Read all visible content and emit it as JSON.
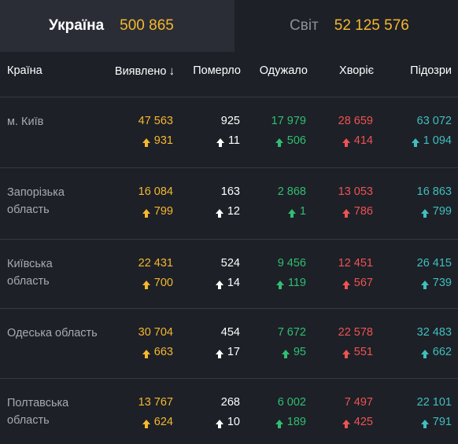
{
  "tabs": {
    "ukraine": {
      "name": "Україна",
      "value": "500 865"
    },
    "world": {
      "name": "Світ",
      "value": "52 125 576"
    }
  },
  "headers": {
    "country": "Країна",
    "detected": "Виявлено",
    "sort_arrow": "↓",
    "died": "Померло",
    "recovered": "Одужало",
    "sick": "Хворіє",
    "suspected": "Підозри"
  },
  "rows": [
    {
      "name": "м. Київ",
      "detected": "47 563",
      "detected_d": "931",
      "died": "925",
      "died_d": "11",
      "recovered": "17 979",
      "recovered_d": "506",
      "sick": "28 659",
      "sick_d": "414",
      "suspected": "63 072",
      "suspected_d": "1 094"
    },
    {
      "name": "Запорізька область",
      "detected": "16 084",
      "detected_d": "799",
      "died": "163",
      "died_d": "12",
      "recovered": "2 868",
      "recovered_d": "1",
      "sick": "13 053",
      "sick_d": "786",
      "suspected": "16 863",
      "suspected_d": "799"
    },
    {
      "name": "Київська область",
      "detected": "22 431",
      "detected_d": "700",
      "died": "524",
      "died_d": "14",
      "recovered": "9 456",
      "recovered_d": "119",
      "sick": "12 451",
      "sick_d": "567",
      "suspected": "26 415",
      "suspected_d": "739"
    },
    {
      "name": "Одеська область",
      "detected": "30 704",
      "detected_d": "663",
      "died": "454",
      "died_d": "17",
      "recovered": "7 672",
      "recovered_d": "95",
      "sick": "22 578",
      "sick_d": "551",
      "suspected": "32 483",
      "suspected_d": "662"
    },
    {
      "name": "Полтавська область",
      "detected": "13 767",
      "detected_d": "624",
      "died": "268",
      "died_d": "10",
      "recovered": "6 002",
      "recovered_d": "189",
      "sick": "7 497",
      "sick_d": "425",
      "suspected": "22 101",
      "suspected_d": "791"
    }
  ],
  "colors": {
    "detected": "#f5b82e",
    "died": "#ffffff",
    "recovered": "#2fbf71",
    "sick": "#f05252",
    "suspected": "#3fbfbf"
  },
  "icons": {
    "delta": "arrow-up-icon",
    "sort": "arrow-down-icon"
  }
}
